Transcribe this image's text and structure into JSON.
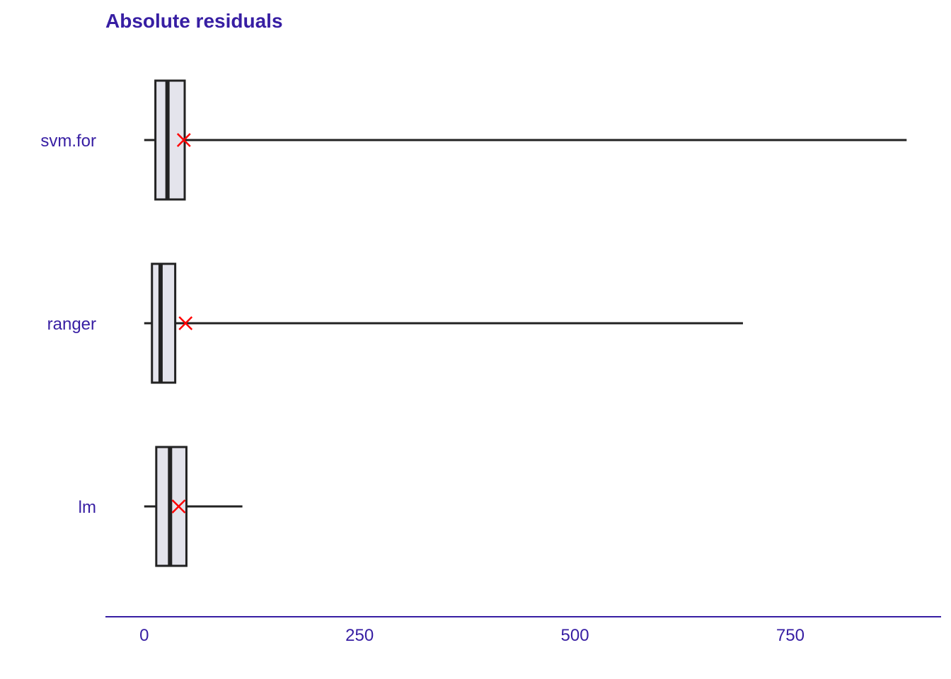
{
  "chart_data": {
    "type": "boxplot",
    "title": "Absolute residuals",
    "xlabel": "",
    "ylabel": "",
    "xlim": [
      -45,
      925
    ],
    "x_ticks": [
      0,
      250,
      500,
      750
    ],
    "x_tick_labels": [
      "0",
      "250",
      "500",
      "750"
    ],
    "grid": false,
    "legend": "none",
    "series": [
      {
        "category": "svm.for",
        "whisker_low": 0,
        "q1": 13,
        "median": 27,
        "q3": 47,
        "whisker_high": 885,
        "mean": 46
      },
      {
        "category": "ranger",
        "whisker_low": 0,
        "q1": 9,
        "median": 19,
        "q3": 36,
        "whisker_high": 695,
        "mean": 48
      },
      {
        "category": "lm",
        "whisker_low": 0,
        "q1": 14,
        "median": 30,
        "q3": 49,
        "whisker_high": 114,
        "mean": 40
      }
    ]
  },
  "colors": {
    "text": "#371ea3",
    "axis": "#371ea3",
    "box_fill": "#e4e4ec",
    "box_stroke": "#222222",
    "mean_marker": "#ff0000"
  }
}
